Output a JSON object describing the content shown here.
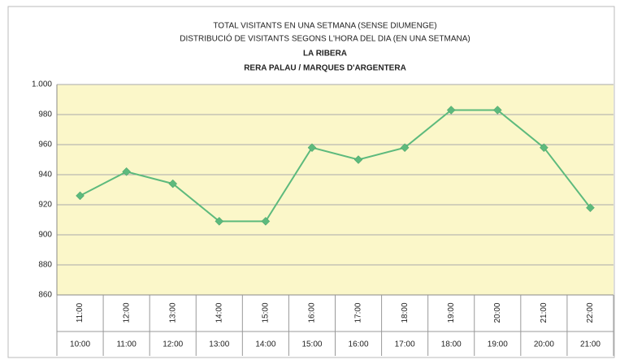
{
  "chart_data": {
    "type": "line",
    "title": [
      "TOTAL VISITANTS EN UNA SETMANA (SENSE DIUMENGE)",
      "DISTRIBUCIÓ DE VISITANTS SEGONS L'HORA DEL DIA (EN UNA SETMANA)"
    ],
    "subtitle": [
      "LA RIBERA",
      "RERA PALAU / MARQUES D'ARGENTERA"
    ],
    "categories": [
      "10:00",
      "11:00",
      "12:00",
      "13:00",
      "14:00",
      "15:00",
      "16:00",
      "17:00",
      "18:00",
      "19:00",
      "20:00",
      "21:00"
    ],
    "category_ends": [
      "11:00",
      "12:00",
      "13:00",
      "14:00",
      "15:00",
      "16:00",
      "17:00",
      "18:00",
      "19:00",
      "20:00",
      "21:00",
      "22:00"
    ],
    "values": [
      926,
      942,
      934,
      909,
      909,
      958,
      950,
      958,
      983,
      983,
      958,
      918
    ],
    "color": "#5dba7d",
    "ylim": [
      860,
      1000
    ],
    "yticks": [
      860,
      880,
      900,
      920,
      940,
      960,
      980,
      {
        "value": 1000,
        "label": "1.000"
      }
    ],
    "grid": true
  }
}
